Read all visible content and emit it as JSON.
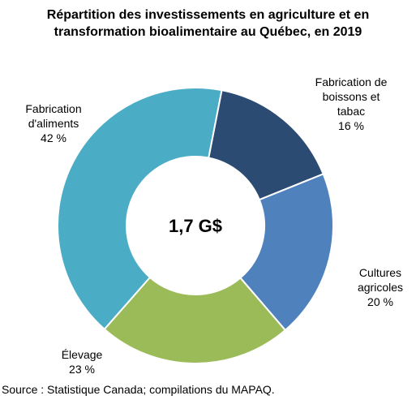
{
  "chart_data": {
    "type": "pie",
    "donut": true,
    "title_lines": [
      "Répartition des investissements en agriculture et en",
      "transformation bioalimentaire au Québec, en 2019"
    ],
    "center_label": "1,7 G$",
    "unit": "%",
    "slices": [
      {
        "name": "Fabrication de boissons et tabac",
        "label_lines": [
          "Fabrication de",
          "boissons et",
          "tabac"
        ],
        "value": 16,
        "value_label": "16 %",
        "color": "#2c4b73"
      },
      {
        "name": "Cultures agricoles",
        "label_lines": [
          "Cultures",
          "agricoles"
        ],
        "value": 20,
        "value_label": "20 %",
        "color": "#4f81bd"
      },
      {
        "name": "Élevage",
        "label_lines": [
          "Élevage"
        ],
        "value": 23,
        "value_label": "23 %",
        "color": "#9bbb59"
      },
      {
        "name": "Fabrication d'aliments",
        "label_lines": [
          "Fabrication",
          "d'aliments"
        ],
        "value": 42,
        "value_label": "42 %",
        "color": "#4bacc6"
      }
    ],
    "source": "Source : Statistique Canada; compilations du MAPAQ."
  }
}
